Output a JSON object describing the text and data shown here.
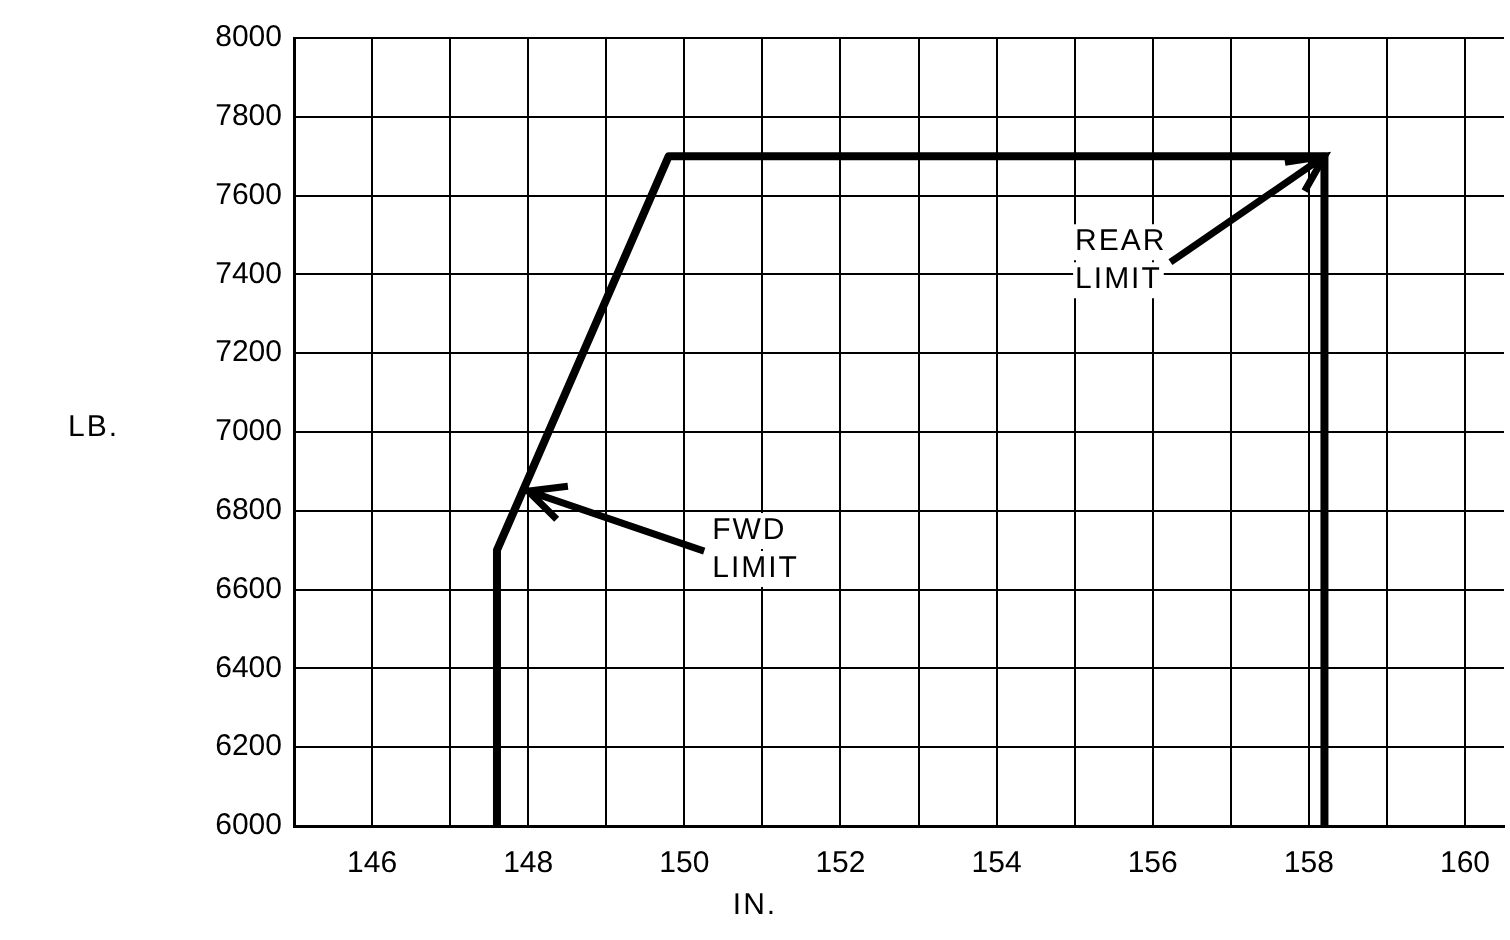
{
  "chart_data": {
    "type": "line",
    "xlabel": "IN.",
    "ylabel": "LB.",
    "x": [
      147.6,
      147.6,
      149.8,
      158.2,
      158.2
    ],
    "series": [
      {
        "color": "#000000",
        "values": [
          6000,
          6700,
          7700,
          7700,
          6000
        ]
      }
    ],
    "xlim": [
      145,
      160.5
    ],
    "xticks": [
      {
        "value": 145,
        "label": null
      },
      146,
      {
        "value": 147,
        "label": null
      },
      148,
      {
        "value": 149,
        "label": null
      },
      150,
      {
        "value": 151,
        "label": null
      },
      152,
      {
        "value": 153,
        "label": null
      },
      154,
      {
        "value": 155,
        "label": null
      },
      156,
      {
        "value": 157,
        "label": null
      },
      158,
      {
        "value": 159,
        "label": null
      },
      160
    ],
    "ylim": [
      6000,
      8000
    ],
    "yticks": [
      6000,
      6200,
      6400,
      6600,
      6800,
      7000,
      7200,
      7400,
      7600,
      7800,
      8000
    ],
    "grid": true,
    "legend": false,
    "marker": "none",
    "line_style": "solid",
    "annotations": [
      {
        "text": "FWD LIMIT",
        "x": 148,
        "y": 6850
      },
      {
        "text": "REAR LIMIT",
        "x": 158.2,
        "y": 7700
      }
    ]
  }
}
